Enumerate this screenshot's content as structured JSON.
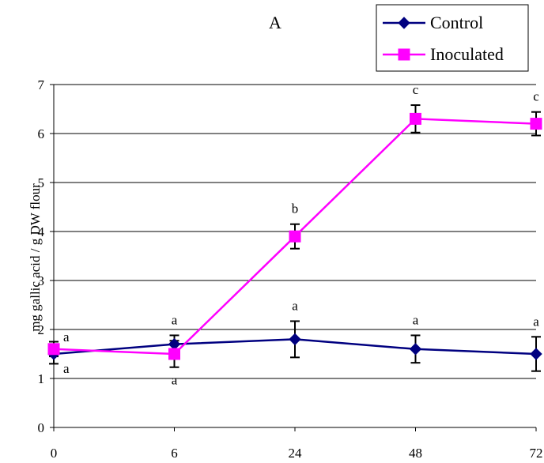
{
  "chart_data": {
    "type": "line",
    "title": "A",
    "xlabel": "",
    "ylabel": "mg gallic acid / g DW flour",
    "categories": [
      "0",
      "6",
      "24",
      "48",
      "72"
    ],
    "ylim": [
      0,
      7
    ],
    "yticks": [
      0,
      1,
      2,
      3,
      4,
      5,
      6,
      7
    ],
    "grid": "horizontal",
    "legend_position": "top-right",
    "series": [
      {
        "name": "Control",
        "color": "#000080",
        "marker": "diamond",
        "values": [
          1.5,
          1.7,
          1.8,
          1.6,
          1.5
        ],
        "errors": [
          0.2,
          0.18,
          0.37,
          0.28,
          0.35
        ],
        "letters": [
          "a",
          "a",
          "a",
          "a",
          "a"
        ]
      },
      {
        "name": "Inoculated",
        "color": "#FF00FF",
        "marker": "square",
        "values": [
          1.6,
          1.5,
          3.9,
          6.3,
          6.2
        ],
        "errors": [
          0.15,
          0.27,
          0.25,
          0.28,
          0.24
        ],
        "letters": [
          "a",
          "a",
          "b",
          "c",
          "c"
        ]
      }
    ]
  }
}
